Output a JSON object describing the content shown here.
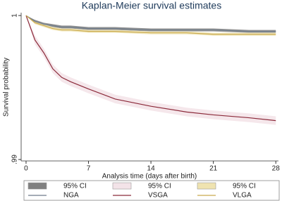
{
  "chart_data": {
    "type": "line",
    "title": "Kaplan-Meier survival estimates",
    "x_label": "Analysis time (days after birth)",
    "y_label": "Survival probability",
    "x": [
      0,
      1,
      2,
      3,
      4,
      5,
      7,
      10,
      14,
      18,
      21,
      25,
      28
    ],
    "xlim": [
      -0.55,
      28.3
    ],
    "xticks": [
      0,
      7,
      14,
      21,
      28
    ],
    "ylim": [
      0.9899,
      1.0002
    ],
    "yticks": [
      {
        "value": 0.99,
        "label": ".99"
      },
      1
    ],
    "legend": "bottom",
    "series": [
      {
        "name": "NGA",
        "color": "#6d7b8a",
        "values": [
          1,
          0.9996,
          0.9994,
          0.9993,
          0.9992,
          0.9992,
          0.9991,
          0.9991,
          0.999,
          0.999,
          0.999,
          0.9989,
          0.9989
        ],
        "ci": {
          "name": "95% CI",
          "color": "#808080",
          "lower": [
            1,
            0.9995,
            0.9993,
            0.9992,
            0.9991,
            0.9991,
            0.999,
            0.999,
            0.9989,
            0.9989,
            0.9989,
            0.9988,
            0.9988
          ],
          "upper": [
            1,
            0.9997,
            0.9995,
            0.9994,
            0.9993,
            0.9993,
            0.9992,
            0.9992,
            0.9991,
            0.9991,
            0.9991,
            0.999,
            0.999
          ]
        }
      },
      {
        "name": "VSGA",
        "color": "#8b2a3a",
        "values": [
          1,
          0.9983,
          0.9974,
          0.9963,
          0.9957,
          0.9954,
          0.9949,
          0.9942,
          0.9937,
          0.9933,
          0.9931,
          0.9929,
          0.9927
        ],
        "ci": {
          "name": "95% CI",
          "color": "#f3e3e8",
          "lower": [
            1,
            0.998,
            0.9971,
            0.996,
            0.9954,
            0.9951,
            0.9946,
            0.9939,
            0.9934,
            0.993,
            0.9928,
            0.9926,
            0.9924
          ],
          "upper": [
            1,
            0.9986,
            0.9977,
            0.9966,
            0.996,
            0.9957,
            0.9952,
            0.9945,
            0.994,
            0.9936,
            0.9934,
            0.9932,
            0.993
          ]
        }
      },
      {
        "name": "VLGA",
        "color": "#c9a94e",
        "values": [
          1,
          0.9995,
          0.9993,
          0.9991,
          0.999,
          0.999,
          0.9989,
          0.9989,
          0.9988,
          0.9988,
          0.9987,
          0.9987,
          0.9987
        ],
        "ci": {
          "name": "95% CI",
          "color": "#efe3b0",
          "lower": [
            1,
            0.9994,
            0.9992,
            0.999,
            0.9989,
            0.9989,
            0.9988,
            0.9988,
            0.9987,
            0.9987,
            0.9986,
            0.9986,
            0.9986
          ],
          "upper": [
            1,
            0.9996,
            0.9994,
            0.9992,
            0.9991,
            0.9991,
            0.999,
            0.999,
            0.9989,
            0.9989,
            0.9988,
            0.9988,
            0.9988
          ]
        }
      }
    ]
  }
}
